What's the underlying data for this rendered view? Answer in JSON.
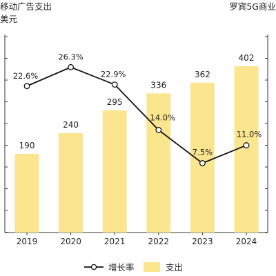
{
  "chart_data": {
    "type": "bar",
    "title_lines": [
      "移动广告支出",
      "美元"
    ],
    "subtitle": "罗宾5G商业",
    "categories": [
      "2019",
      "2020",
      "2021",
      "2022",
      "2023",
      "2024"
    ],
    "series": [
      {
        "name": "支出",
        "type": "bar",
        "axis": "left",
        "color": "#FBE58E",
        "values": [
          190,
          240,
          295,
          336,
          362,
          402
        ],
        "labels": [
          "190",
          "240",
          "295",
          "336",
          "362",
          "402"
        ]
      },
      {
        "name": "增长率",
        "type": "line",
        "axis": "right",
        "color": "#111111",
        "unit": "%",
        "values": [
          22.6,
          26.3,
          22.9,
          14.0,
          7.5,
          11.0
        ],
        "labels": [
          "22.6%",
          "26.3%",
          "22.9%",
          "14.0%",
          "7.5%",
          "11.0%"
        ]
      }
    ],
    "ylim": [
      0,
      500
    ],
    "y2lim": [
      5,
      30
    ],
    "gridlines": false,
    "legend_position": "bottom-center",
    "legend_order": [
      "增长率",
      "支出"
    ]
  }
}
